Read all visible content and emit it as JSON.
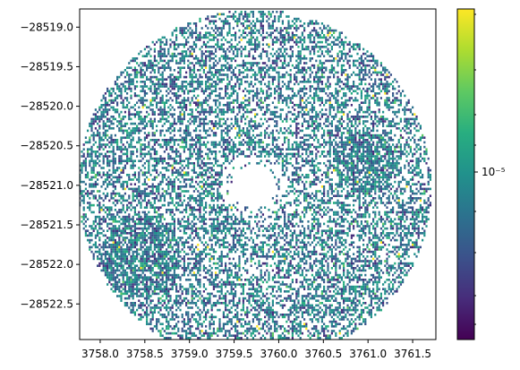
{
  "chart_data": {
    "type": "heatmap",
    "title": "",
    "xlabel": "",
    "ylabel": "",
    "x_ticks": [
      3758.0,
      3758.5,
      3759.0,
      3759.5,
      3760.0,
      3760.5,
      3761.0,
      3761.5
    ],
    "x_tick_labels": [
      "3758.0",
      "3758.5",
      "3759.0",
      "3759.5",
      "3760.0",
      "3760.5",
      "3761.0",
      "3761.5"
    ],
    "y_ticks": [
      -28519.0,
      -28519.5,
      -28520.0,
      -28520.5,
      -28521.0,
      -28521.5,
      -28522.0,
      -28522.5
    ],
    "y_tick_labels": [
      "−28519.0",
      "−28519.5",
      "−28520.0",
      "−28520.5",
      "−28521.0",
      "−28521.5",
      "−28522.0",
      "−28522.5"
    ],
    "xlim": [
      3757.77,
      3761.76
    ],
    "ylim": [
      -28522.95,
      -28518.77
    ],
    "ring": {
      "center": [
        3759.72,
        -28521.0
      ],
      "outer_radius": 1.98,
      "inner_radius": 0.24,
      "fill_fraction": 0.46
    },
    "dense_regions": [
      {
        "center": [
          3758.45,
          -28521.9
        ],
        "radius": 0.45
      },
      {
        "center": [
          3760.95,
          -28520.7
        ],
        "radius": 0.35
      }
    ],
    "colorbar": {
      "scale": "log",
      "colormap": "viridis",
      "tick_labels": [
        "10⁻⁵"
      ],
      "colors": [
        "#440154",
        "#472d7b",
        "#3b528b",
        "#2c728e",
        "#21918c",
        "#28ae80",
        "#5ec962",
        "#addc30",
        "#fde725"
      ]
    }
  }
}
